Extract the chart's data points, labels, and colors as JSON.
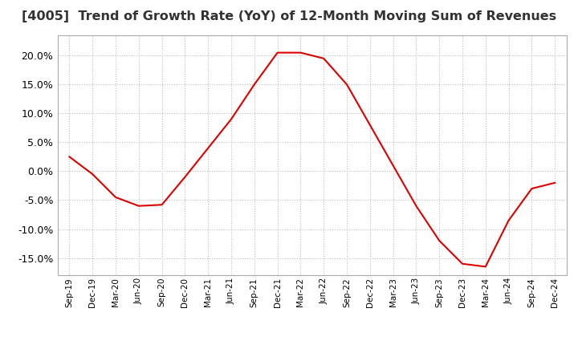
{
  "title": "[4005]  Trend of Growth Rate (YoY) of 12-Month Moving Sum of Revenues",
  "title_fontsize": 11.5,
  "line_color": "#dd0000",
  "background_color": "#ffffff",
  "plot_bg_color": "#ffffff",
  "grid_color": "#bbbbbb",
  "ylim": [
    -0.18,
    0.235
  ],
  "yticks": [
    -0.15,
    -0.1,
    -0.05,
    0.0,
    0.05,
    0.1,
    0.15,
    0.2
  ],
  "x_labels": [
    "Sep-19",
    "Dec-19",
    "Mar-20",
    "Jun-20",
    "Sep-20",
    "Dec-20",
    "Mar-21",
    "Jun-21",
    "Sep-21",
    "Dec-21",
    "Mar-22",
    "Jun-22",
    "Sep-22",
    "Dec-22",
    "Mar-23",
    "Jun-23",
    "Sep-23",
    "Dec-23",
    "Mar-24",
    "Jun-24",
    "Sep-24",
    "Dec-24"
  ],
  "y_values": [
    0.025,
    -0.005,
    -0.045,
    -0.06,
    -0.058,
    -0.01,
    0.04,
    0.09,
    0.15,
    0.205,
    0.205,
    0.195,
    0.15,
    0.08,
    0.01,
    -0.06,
    -0.12,
    -0.16,
    -0.165,
    -0.085,
    -0.03,
    -0.02
  ]
}
